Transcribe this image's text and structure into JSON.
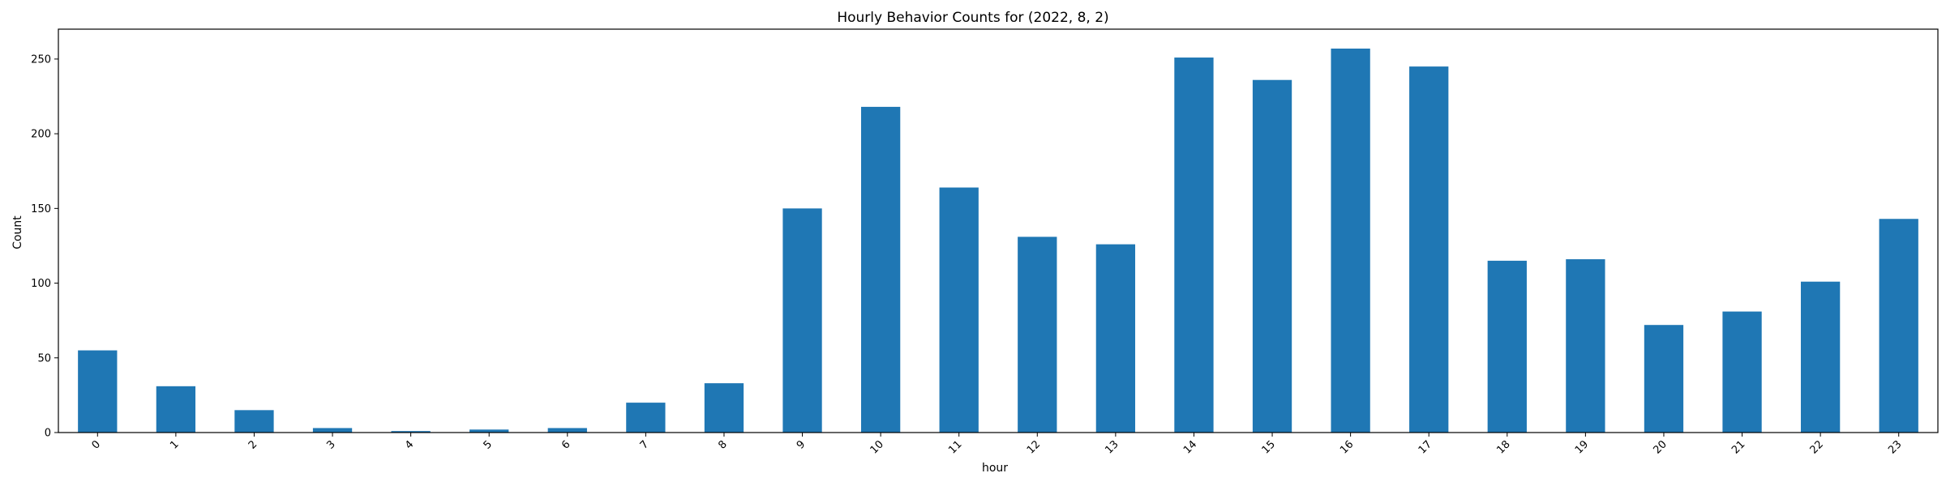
{
  "chart_data": {
    "type": "bar",
    "title": "Hourly Behavior Counts for (2022, 8, 2)",
    "xlabel": "hour",
    "ylabel": "Count",
    "categories": [
      "0",
      "1",
      "2",
      "3",
      "4",
      "5",
      "6",
      "7",
      "8",
      "9",
      "10",
      "11",
      "12",
      "13",
      "14",
      "15",
      "16",
      "17",
      "18",
      "19",
      "20",
      "21",
      "22",
      "23"
    ],
    "values": [
      55,
      31,
      15,
      3,
      1,
      2,
      3,
      20,
      33,
      150,
      218,
      164,
      131,
      126,
      251,
      236,
      257,
      245,
      115,
      116,
      72,
      81,
      101,
      143
    ],
    "ylim": [
      0,
      270
    ],
    "yticks": [
      "0",
      "50",
      "100",
      "150",
      "200",
      "250"
    ],
    "bar_color": "#1f77b4",
    "grid": false,
    "legend": "none"
  }
}
